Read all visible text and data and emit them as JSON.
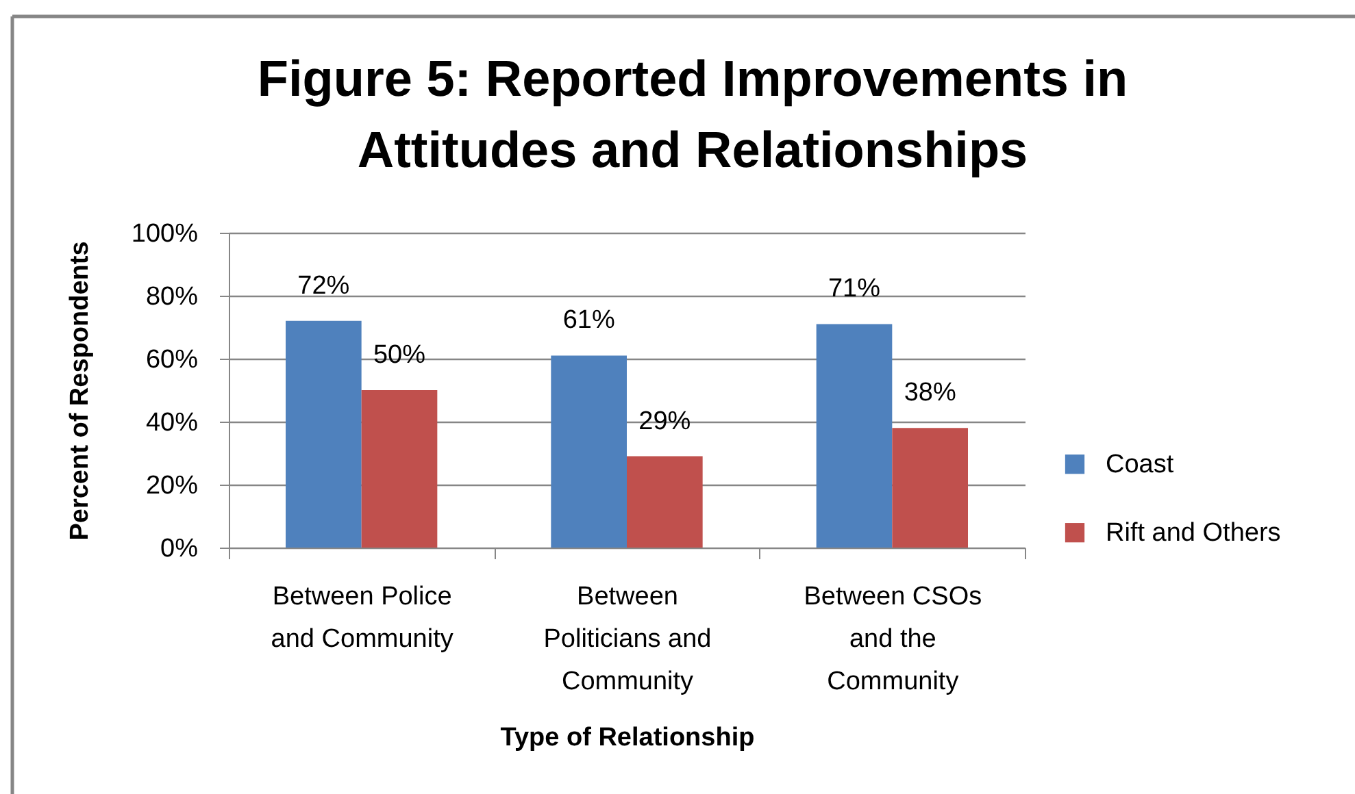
{
  "chart_data": {
    "type": "bar",
    "title": "Figure 5: Reported Improvements in Attitudes and Relationships",
    "xlabel": "Type of Relationship",
    "ylabel": "Percent of Respondents",
    "categories": [
      "Between Police and Community",
      "Between Politicians and Community",
      "Between CSOs and the Community"
    ],
    "series": [
      {
        "name": "Coast",
        "color": "#4f81bd",
        "values": [
          72,
          61,
          71
        ],
        "value_labels": [
          "72%",
          "61%",
          "71%"
        ]
      },
      {
        "name": "Rift and Others",
        "color": "#c0504d",
        "values": [
          50,
          29,
          38
        ],
        "value_labels": [
          "50%",
          "29%",
          "38%"
        ]
      }
    ],
    "ylim": [
      0,
      100
    ],
    "yticks": [
      {
        "value": 0,
        "label": "0%"
      },
      {
        "value": 20,
        "label": "20%"
      },
      {
        "value": 40,
        "label": "40%"
      },
      {
        "value": 60,
        "label": "60%"
      },
      {
        "value": 80,
        "label": "80%"
      },
      {
        "value": 100,
        "label": "100%"
      }
    ],
    "grid": "y",
    "legend": "right"
  }
}
